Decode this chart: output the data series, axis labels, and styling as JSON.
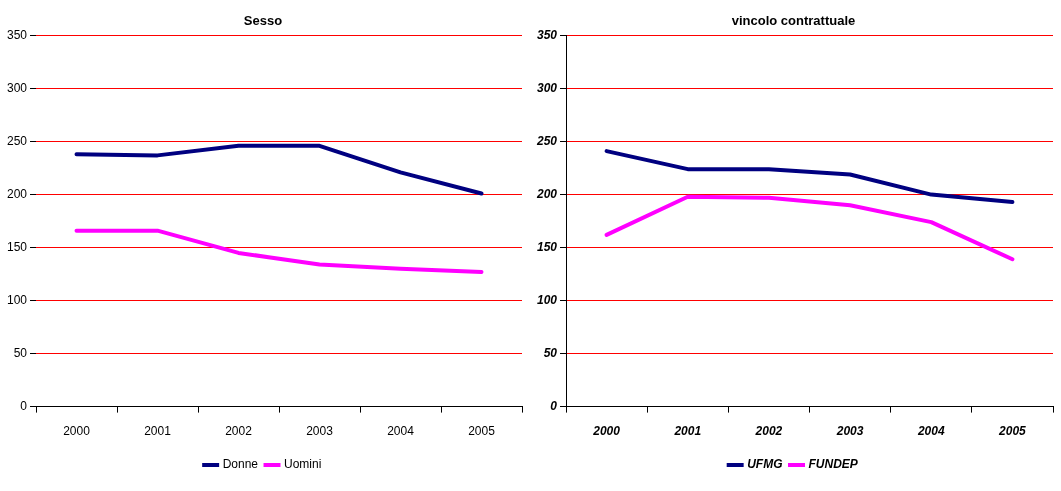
{
  "chart_data": [
    {
      "type": "line",
      "title": "Sesso",
      "categories": [
        "2000",
        "2001",
        "2002",
        "2003",
        "2004",
        "2005"
      ],
      "series": [
        {
          "name": "Donne",
          "color": "#000080",
          "values": [
            238,
            237,
            246,
            246,
            221,
            201
          ]
        },
        {
          "name": "Uomini",
          "color": "#ff00ff",
          "values": [
            166,
            166,
            145,
            134,
            130,
            127
          ]
        }
      ],
      "ylim": [
        0,
        350
      ],
      "yticks": [
        0,
        50,
        100,
        150,
        200,
        250,
        300,
        350
      ],
      "grid": "y",
      "legend": "bottom"
    },
    {
      "type": "line",
      "title": "vincolo contrattuale",
      "categories": [
        "2000",
        "2001",
        "2002",
        "2003",
        "2004",
        "2005"
      ],
      "series": [
        {
          "name": "UFMG",
          "color": "#000080",
          "values": [
            241,
            224,
            224,
            219,
            200,
            193
          ]
        },
        {
          "name": "FUNDEP",
          "color": "#ff00ff",
          "values": [
            162,
            198,
            197,
            190,
            174,
            139
          ]
        }
      ],
      "ylim": [
        0,
        350
      ],
      "yticks": [
        0,
        50,
        100,
        150,
        200,
        250,
        300,
        350
      ],
      "grid": "y",
      "legend": "bottom"
    }
  ]
}
